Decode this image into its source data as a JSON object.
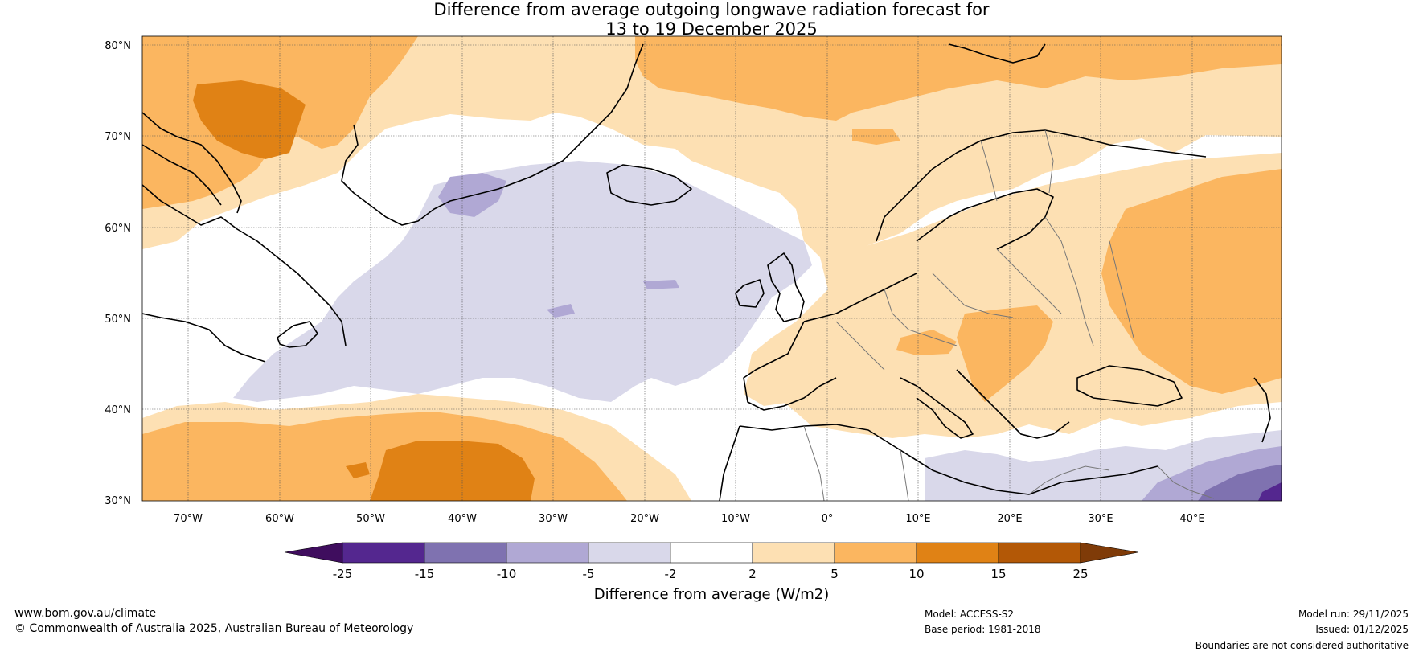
{
  "title": {
    "line1": "Difference from average outgoing longwave radiation forecast for",
    "line2": "13 to 19 December 2025"
  },
  "map": {
    "lat_labels": [
      "80°N",
      "70°N",
      "60°N",
      "50°N",
      "40°N",
      "30°N"
    ],
    "lon_labels": [
      "70°W",
      "60°W",
      "50°W",
      "40°W",
      "30°W",
      "20°W",
      "10°W",
      "0°",
      "10°E",
      "20°E",
      "30°E",
      "40°E"
    ]
  },
  "colorbar": {
    "label": "Difference from average (W/m2)",
    "ticks": [
      "-25",
      "-15",
      "-10",
      "-5",
      "-2",
      "2",
      "5",
      "10",
      "15",
      "25"
    ],
    "colors": [
      "#3f0d5e",
      "#54278f",
      "#7f72b0",
      "#b0a8d4",
      "#d9d8ea",
      "#ffffff",
      "#fde0b3",
      "#fbb660",
      "#e08215",
      "#b35806",
      "#7f3b08"
    ]
  },
  "footer": {
    "website": "www.bom.gov.au/climate",
    "copyright": "© Commonwealth of Australia 2025, Australian Bureau of Meteorology",
    "model": "Model: ACCESS-S2",
    "base_period": "Base period: 1981-2018",
    "model_run": "Model run: 29/11/2025",
    "issued": "Issued: 01/12/2025",
    "disclaimer": "Boundaries are not considered authoritative"
  }
}
